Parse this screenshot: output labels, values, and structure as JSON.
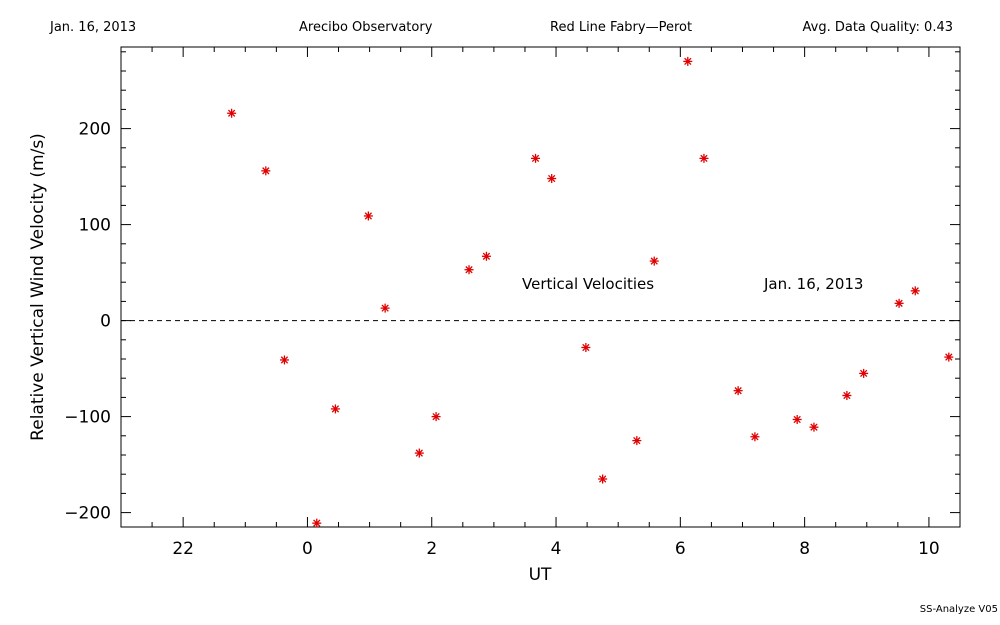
{
  "header": {
    "date": "Jan. 16, 2013",
    "observatory": "Arecibo Observatory",
    "instrument": "Red Line Fabry—Perot",
    "quality": "Avg. Data Quality: 0.43"
  },
  "footer": "SS-Analyze V05",
  "chart_data": {
    "type": "scatter",
    "xlabel": "UT",
    "ylabel": "Relative Vertical Wind Velocity (m/s)",
    "xlim": [
      21,
      34.5
    ],
    "ylim": [
      -215,
      285
    ],
    "x_ticks": [
      22,
      24,
      26,
      28,
      30,
      32,
      34
    ],
    "x_tick_labels": [
      "22",
      "0",
      "2",
      "4",
      "6",
      "8",
      "10"
    ],
    "y_ticks": [
      -200,
      -100,
      0,
      100,
      200
    ],
    "y_tick_labels": [
      "−200",
      "−100",
      "0",
      "100",
      "200"
    ],
    "grid": false,
    "zero_line": "dashed",
    "marker_color": "#e00000",
    "annotations": [
      "Vertical Velocities",
      "Jan. 16, 2013"
    ],
    "series": [
      {
        "x": [
          22.78,
          23.33,
          23.63,
          24.15,
          24.45,
          24.98,
          25.25,
          25.8,
          26.07,
          26.6,
          26.88,
          27.67,
          27.93,
          28.48,
          28.75,
          29.3,
          29.58,
          30.12,
          30.38,
          30.93,
          31.2,
          31.88,
          32.15,
          32.68,
          32.95,
          33.52,
          33.78,
          34.32
        ],
        "y": [
          216,
          156,
          -41,
          -211,
          -92,
          109,
          13,
          -138,
          -100,
          53,
          67,
          169,
          148,
          -28,
          -165,
          -125,
          62,
          270,
          169,
          -73,
          -121,
          -103,
          -111,
          -78,
          -55,
          18,
          31,
          -38
        ]
      }
    ]
  }
}
